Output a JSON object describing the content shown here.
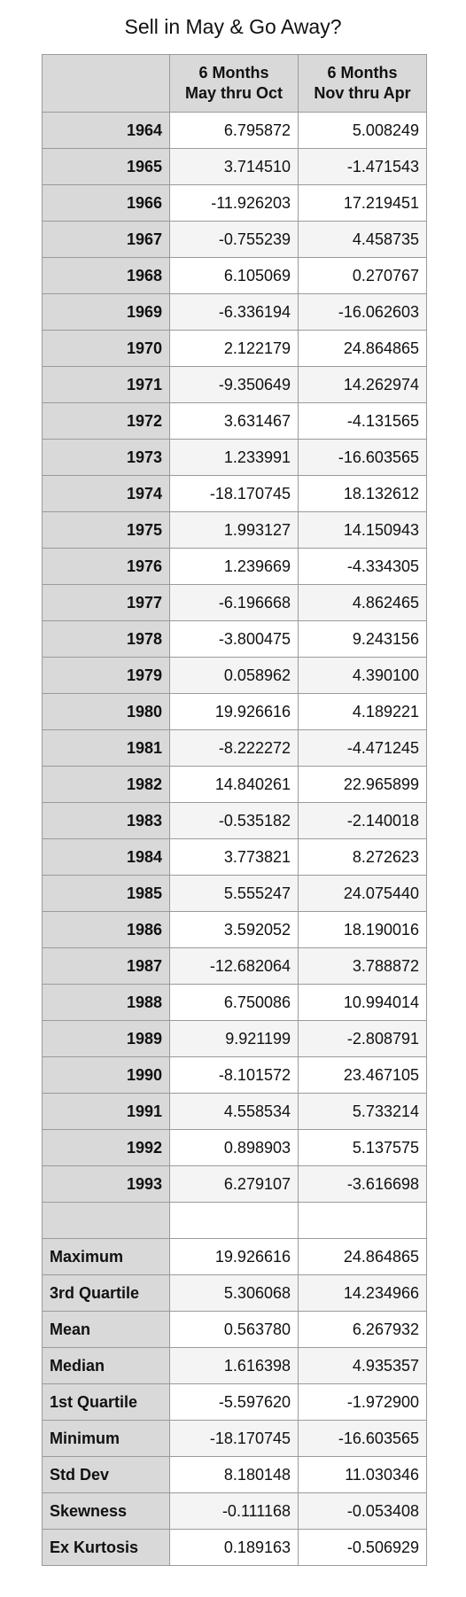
{
  "chart_data": {
    "type": "table",
    "title": "Sell in May & Go Away?",
    "columns": [
      {
        "line1": "6 Months",
        "line2": "May thru Oct"
      },
      {
        "line1": "6 Months",
        "line2": "Nov thru Apr"
      }
    ],
    "rows": [
      {
        "year": "1964",
        "may_oct": "6.795872",
        "nov_apr": "5.008249"
      },
      {
        "year": "1965",
        "may_oct": "3.714510",
        "nov_apr": "-1.471543"
      },
      {
        "year": "1966",
        "may_oct": "-11.926203",
        "nov_apr": "17.219451"
      },
      {
        "year": "1967",
        "may_oct": "-0.755239",
        "nov_apr": "4.458735"
      },
      {
        "year": "1968",
        "may_oct": "6.105069",
        "nov_apr": "0.270767"
      },
      {
        "year": "1969",
        "may_oct": "-6.336194",
        "nov_apr": "-16.062603"
      },
      {
        "year": "1970",
        "may_oct": "2.122179",
        "nov_apr": "24.864865"
      },
      {
        "year": "1971",
        "may_oct": "-9.350649",
        "nov_apr": "14.262974"
      },
      {
        "year": "1972",
        "may_oct": "3.631467",
        "nov_apr": "-4.131565"
      },
      {
        "year": "1973",
        "may_oct": "1.233991",
        "nov_apr": "-16.603565"
      },
      {
        "year": "1974",
        "may_oct": "-18.170745",
        "nov_apr": "18.132612"
      },
      {
        "year": "1975",
        "may_oct": "1.993127",
        "nov_apr": "14.150943"
      },
      {
        "year": "1976",
        "may_oct": "1.239669",
        "nov_apr": "-4.334305"
      },
      {
        "year": "1977",
        "may_oct": "-6.196668",
        "nov_apr": "4.862465"
      },
      {
        "year": "1978",
        "may_oct": "-3.800475",
        "nov_apr": "9.243156"
      },
      {
        "year": "1979",
        "may_oct": "0.058962",
        "nov_apr": "4.390100"
      },
      {
        "year": "1980",
        "may_oct": "19.926616",
        "nov_apr": "4.189221"
      },
      {
        "year": "1981",
        "may_oct": "-8.222272",
        "nov_apr": "-4.471245"
      },
      {
        "year": "1982",
        "may_oct": "14.840261",
        "nov_apr": "22.965899"
      },
      {
        "year": "1983",
        "may_oct": "-0.535182",
        "nov_apr": "-2.140018"
      },
      {
        "year": "1984",
        "may_oct": "3.773821",
        "nov_apr": "8.272623"
      },
      {
        "year": "1985",
        "may_oct": "5.555247",
        "nov_apr": "24.075440"
      },
      {
        "year": "1986",
        "may_oct": "3.592052",
        "nov_apr": "18.190016"
      },
      {
        "year": "1987",
        "may_oct": "-12.682064",
        "nov_apr": "3.788872"
      },
      {
        "year": "1988",
        "may_oct": "6.750086",
        "nov_apr": "10.994014"
      },
      {
        "year": "1989",
        "may_oct": "9.921199",
        "nov_apr": "-2.808791"
      },
      {
        "year": "1990",
        "may_oct": "-8.101572",
        "nov_apr": "23.467105"
      },
      {
        "year": "1991",
        "may_oct": "4.558534",
        "nov_apr": "5.733214"
      },
      {
        "year": "1992",
        "may_oct": "0.898903",
        "nov_apr": "5.137575"
      },
      {
        "year": "1993",
        "may_oct": "6.279107",
        "nov_apr": "-3.616698"
      }
    ],
    "stats": [
      {
        "label": "Maximum",
        "may_oct": "19.926616",
        "nov_apr": "24.864865"
      },
      {
        "label": "3rd Quartile",
        "may_oct": "5.306068",
        "nov_apr": "14.234966"
      },
      {
        "label": "Mean",
        "may_oct": "0.563780",
        "nov_apr": "6.267932"
      },
      {
        "label": "Median",
        "may_oct": "1.616398",
        "nov_apr": "4.935357"
      },
      {
        "label": "1st Quartile",
        "may_oct": "-5.597620",
        "nov_apr": "-1.972900"
      },
      {
        "label": "Minimum",
        "may_oct": "-18.170745",
        "nov_apr": "-16.603565"
      },
      {
        "label": "Std Dev",
        "may_oct": "8.180148",
        "nov_apr": "11.030346"
      },
      {
        "label": "Skewness",
        "may_oct": "-0.111168",
        "nov_apr": "-0.053408"
      },
      {
        "label": "Ex Kurtosis",
        "may_oct": "0.189163",
        "nov_apr": "-0.506929"
      }
    ]
  },
  "colors": {
    "header_fill": "#d9d9d9",
    "label_fill": "#d9d9d9",
    "alt_row_fill": "#f4f4f4",
    "border": "#9a9a9a"
  }
}
